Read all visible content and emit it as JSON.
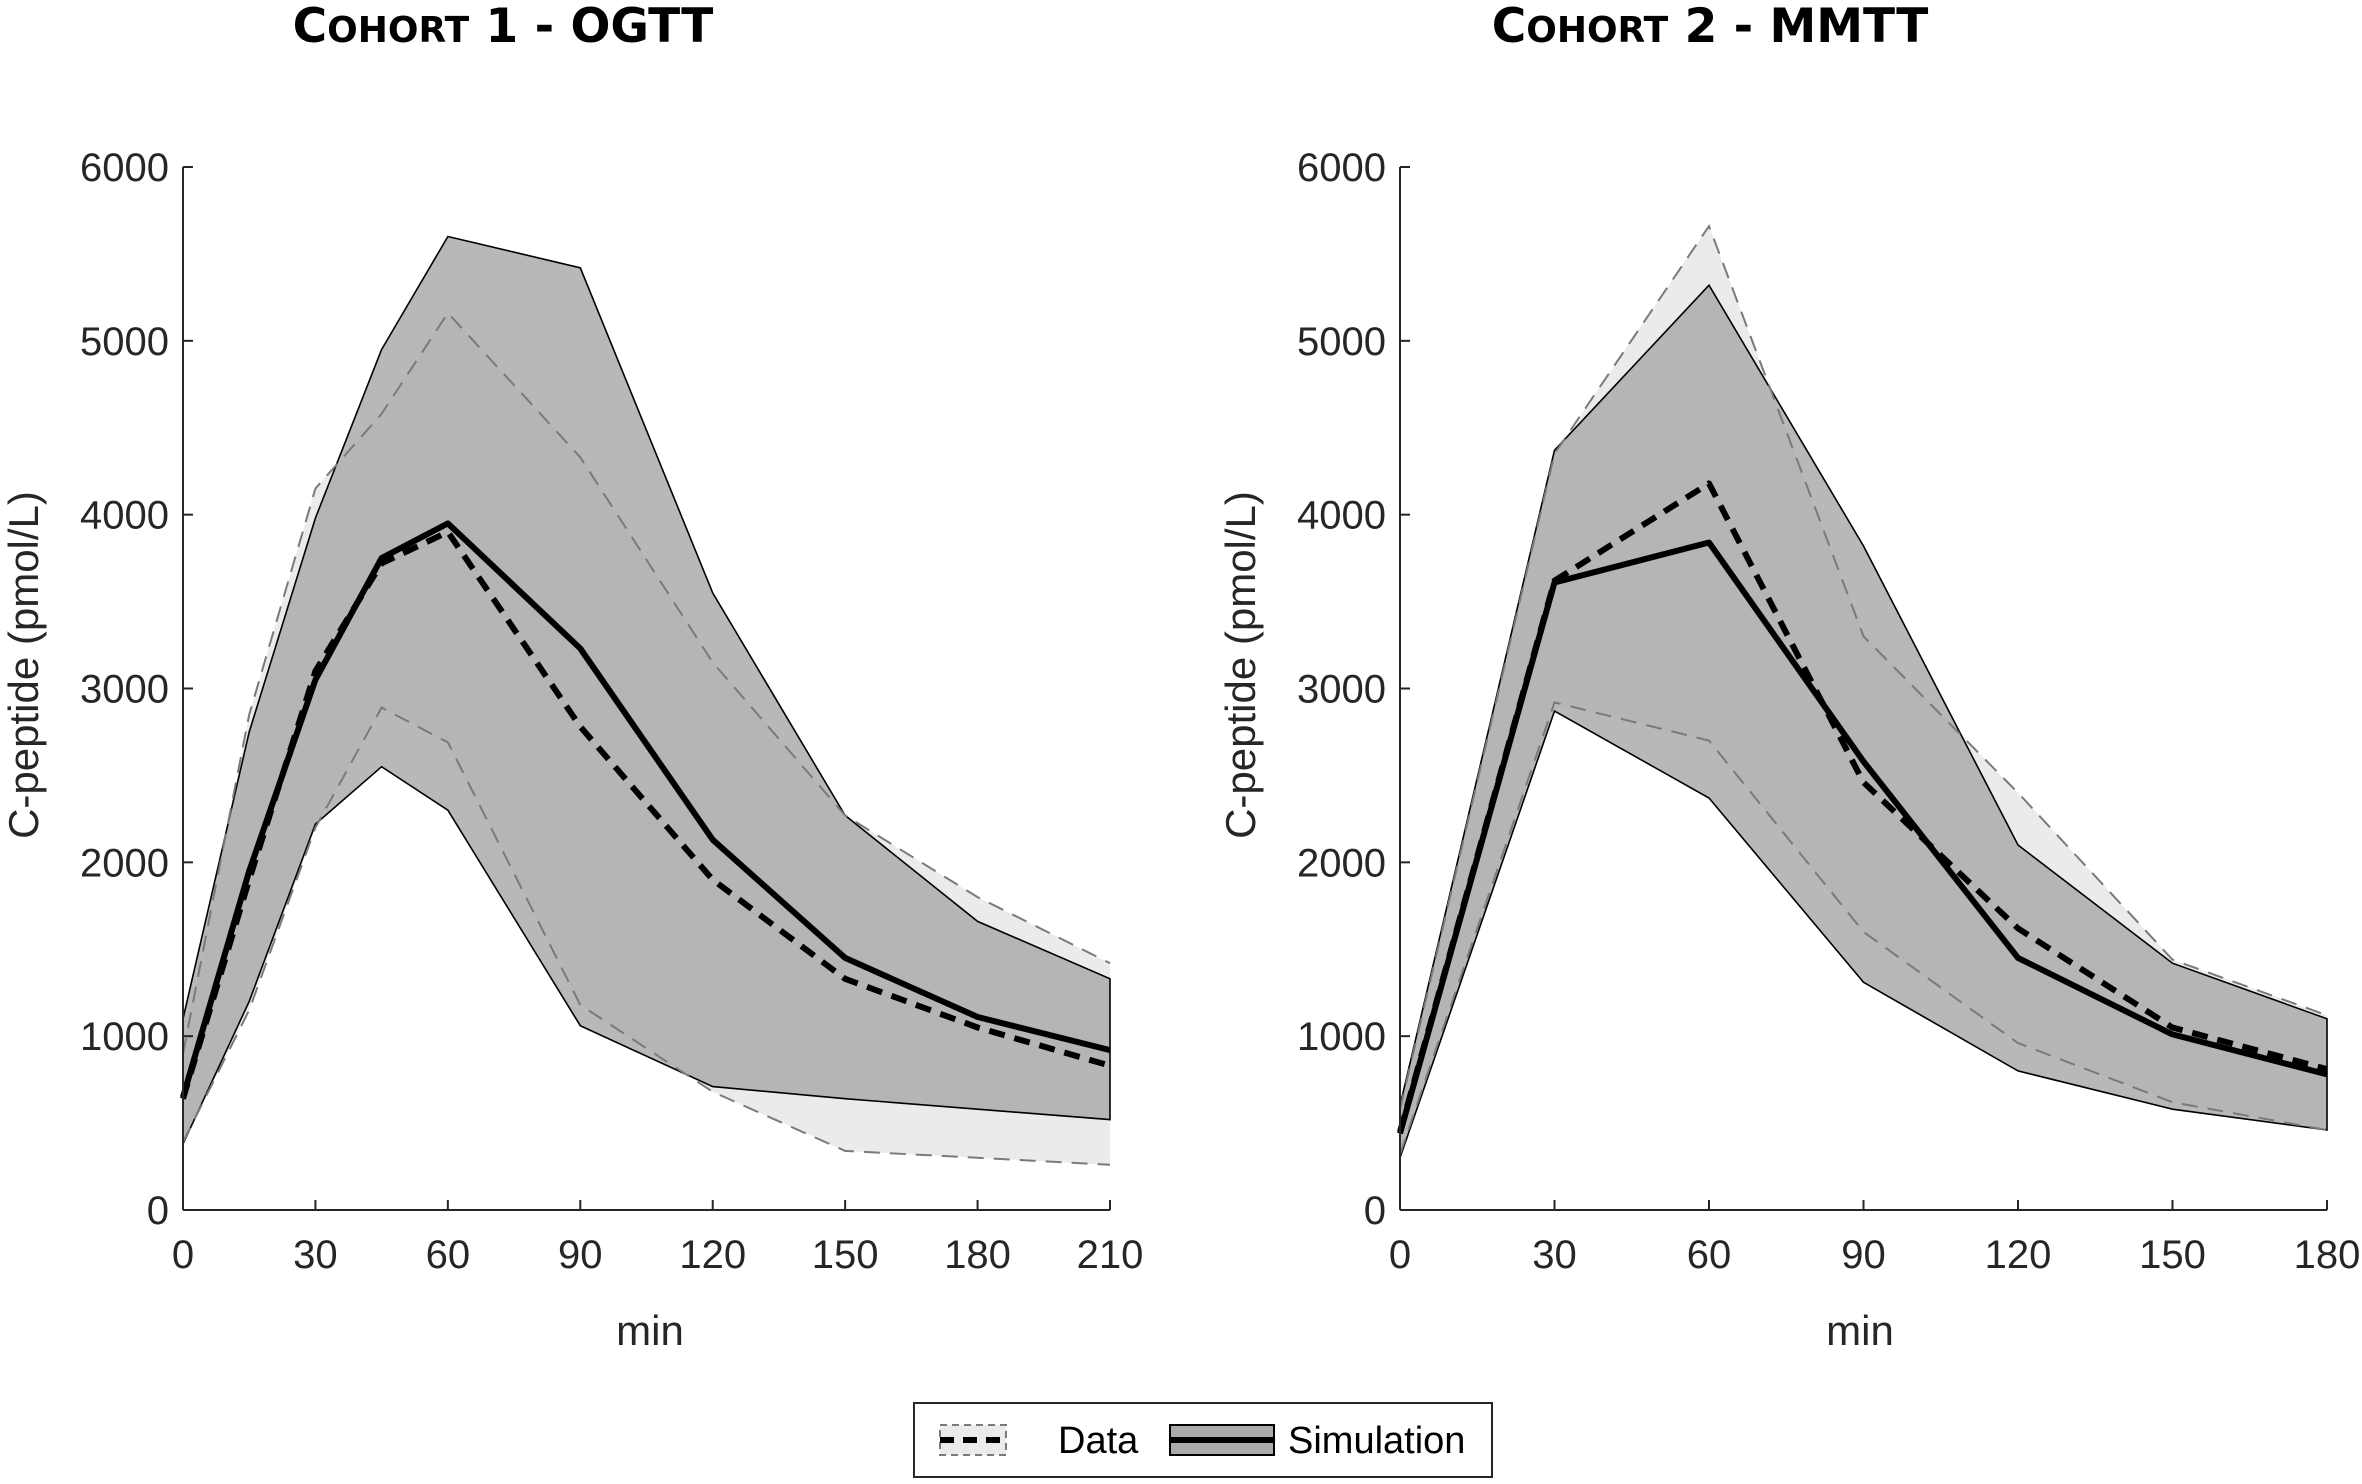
{
  "colors": {
    "data_band": "#ebebeb",
    "sim_band": "#ababab",
    "line": "#000000",
    "band_edge_data": "#7a7a7a",
    "axis": "#262626"
  },
  "legend": {
    "data_label": "Data",
    "simulation_label": "Simulation"
  },
  "chart_data": [
    {
      "type": "line",
      "title_prefix": "C",
      "title_smallcaps": "OHORT",
      "title_suffix": " 1 - OGTT",
      "xlabel": "min",
      "ylabel": "C-peptide (pmol/L)",
      "xlim": [
        0,
        210
      ],
      "ylim": [
        0,
        6000
      ],
      "xticks": [
        0,
        30,
        60,
        90,
        120,
        150,
        180,
        210
      ],
      "yticks": [
        0,
        1000,
        2000,
        3000,
        4000,
        5000,
        6000
      ],
      "series": [
        {
          "name": "Data",
          "style": "dashed",
          "x": [
            0,
            15,
            30,
            45,
            60,
            90,
            120,
            150,
            180,
            210
          ],
          "values": [
            640,
            1900,
            3100,
            3720,
            3900,
            2780,
            1900,
            1330,
            1050,
            830
          ],
          "upper": [
            900,
            2850,
            4150,
            4580,
            5160,
            4330,
            3150,
            2270,
            1800,
            1420
          ],
          "lower": [
            390,
            1150,
            2200,
            2890,
            2690,
            1180,
            680,
            340,
            300,
            260
          ]
        },
        {
          "name": "Simulation",
          "style": "solid",
          "x": [
            0,
            15,
            30,
            45,
            60,
            90,
            120,
            150,
            180,
            210
          ],
          "values": [
            650,
            1950,
            3050,
            3750,
            3950,
            3230,
            2130,
            1450,
            1110,
            920
          ],
          "upper": [
            1100,
            2750,
            3980,
            4950,
            5600,
            5420,
            3550,
            2270,
            1660,
            1330
          ],
          "lower": [
            380,
            1200,
            2220,
            2550,
            2300,
            1060,
            710,
            640,
            580,
            520
          ]
        }
      ]
    },
    {
      "type": "line",
      "title_prefix": "C",
      "title_smallcaps": "OHORT",
      "title_suffix": " 2 - MMTT",
      "xlabel": "min",
      "ylabel": "C-peptide (pmol/L)",
      "xlim": [
        0,
        180
      ],
      "ylim": [
        0,
        6000
      ],
      "xticks": [
        0,
        30,
        60,
        90,
        120,
        150,
        180
      ],
      "yticks": [
        0,
        1000,
        2000,
        3000,
        4000,
        5000,
        6000
      ],
      "series": [
        {
          "name": "Data",
          "style": "dashed",
          "x": [
            0,
            30,
            60,
            90,
            120,
            150,
            180
          ],
          "values": [
            450,
            3620,
            4180,
            2460,
            1620,
            1050,
            810
          ],
          "upper": [
            580,
            4350,
            5660,
            3300,
            2400,
            1440,
            1120
          ],
          "lower": [
            320,
            2920,
            2700,
            1600,
            960,
            620,
            460
          ]
        },
        {
          "name": "Simulation",
          "style": "solid",
          "x": [
            0,
            30,
            60,
            90,
            120,
            150,
            180
          ],
          "values": [
            440,
            3610,
            3840,
            2580,
            1450,
            1010,
            780
          ],
          "upper": [
            600,
            4370,
            5320,
            3820,
            2100,
            1420,
            1100
          ],
          "lower": [
            300,
            2870,
            2370,
            1310,
            800,
            580,
            460
          ]
        }
      ]
    }
  ]
}
